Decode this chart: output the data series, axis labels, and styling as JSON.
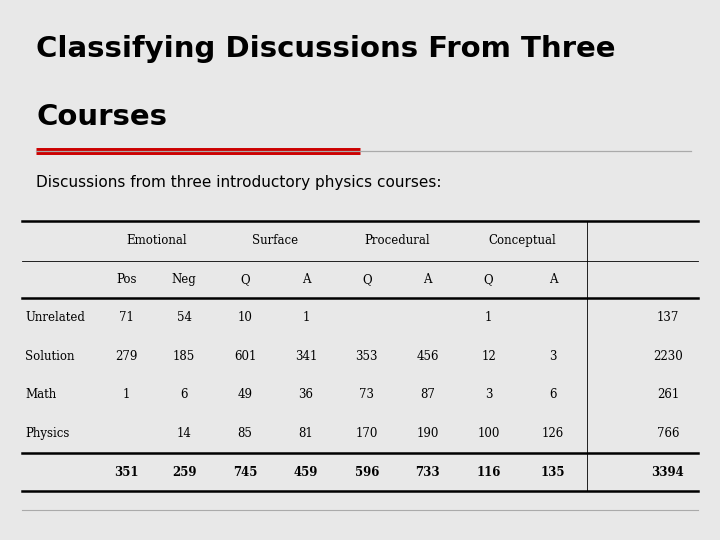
{
  "title_line1": "Classifying Discussions From Three",
  "title_line2": "Courses",
  "subtitle": "Discussions from three introductory physics courses:",
  "background_color": "#e8e8e8",
  "title_color": "#000000",
  "subtitle_color": "#000000",
  "red_bar_color": "#cc0000",
  "table_bg": "#ffffff",
  "col_groups": [
    "Emotional",
    "Surface",
    "Procedural",
    "Conceptual"
  ],
  "col_subheaders": [
    "Pos",
    "Neg",
    "Q",
    "A",
    "Q",
    "A",
    "Q",
    "A"
  ],
  "row_labels": [
    "Unrelated",
    "Solution",
    "Math",
    "Physics",
    ""
  ],
  "data": [
    [
      "71",
      "54",
      "10",
      "1",
      "",
      "",
      "1",
      "",
      "137"
    ],
    [
      "279",
      "185",
      "601",
      "341",
      "353",
      "456",
      "12",
      "3",
      "2230"
    ],
    [
      "1",
      "6",
      "49",
      "36",
      "73",
      "87",
      "3",
      "6",
      "261"
    ],
    [
      "",
      "14",
      "85",
      "81",
      "170",
      "190",
      "100",
      "126",
      "766"
    ],
    [
      "351",
      "259",
      "745",
      "459",
      "596",
      "733",
      "116",
      "135",
      "3394"
    ]
  ],
  "table_border_color": "#000000"
}
